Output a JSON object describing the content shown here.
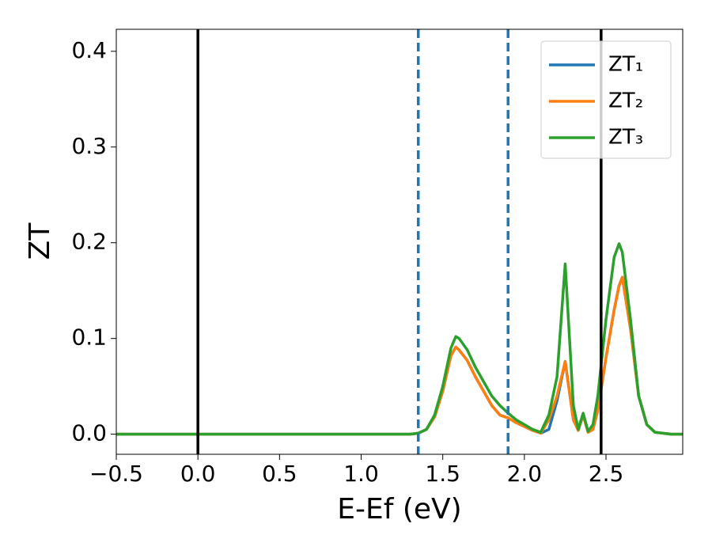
{
  "chart_data": {
    "type": "line",
    "xlabel": "E-Ef (eV)",
    "ylabel": "ZT",
    "x": [
      -0.5,
      0.0,
      0.5,
      1.0,
      1.3,
      1.35,
      1.4,
      1.45,
      1.5,
      1.55,
      1.58,
      1.6,
      1.65,
      1.7,
      1.75,
      1.8,
      1.85,
      1.9,
      1.95,
      2.0,
      2.05,
      2.1,
      2.15,
      2.2,
      2.25,
      2.3,
      2.33,
      2.36,
      2.39,
      2.42,
      2.45,
      2.5,
      2.55,
      2.58,
      2.6,
      2.65,
      2.7,
      2.75,
      2.8,
      2.9,
      2.97
    ],
    "series": [
      {
        "name": "ZT₁",
        "color": "#1f77b4",
        "values": [
          0,
          0,
          0,
          0,
          0,
          0.001,
          0.005,
          0.018,
          0.045,
          0.082,
          0.091,
          0.088,
          0.077,
          0.06,
          0.045,
          0.03,
          0.02,
          0.017,
          0.012,
          0.008,
          0.004,
          0.001,
          0.005,
          0.035,
          0.076,
          0.015,
          0.004,
          0.02,
          0.002,
          0.005,
          0.025,
          0.08,
          0.13,
          0.155,
          0.164,
          0.11,
          0.04,
          0.01,
          0.002,
          0,
          0
        ]
      },
      {
        "name": "ZT₂",
        "color": "#ff7f0e",
        "values": [
          0,
          0,
          0,
          0,
          0,
          0.001,
          0.005,
          0.018,
          0.045,
          0.082,
          0.091,
          0.088,
          0.077,
          0.06,
          0.045,
          0.03,
          0.02,
          0.017,
          0.012,
          0.008,
          0.004,
          0.001,
          0.015,
          0.04,
          0.076,
          0.015,
          0.004,
          0.02,
          0.002,
          0.005,
          0.025,
          0.08,
          0.13,
          0.155,
          0.164,
          0.11,
          0.04,
          0.01,
          0.002,
          0,
          0
        ]
      },
      {
        "name": "ZT₃",
        "color": "#2ca02c",
        "values": [
          0,
          0,
          0,
          0,
          0,
          0.001,
          0.005,
          0.02,
          0.05,
          0.09,
          0.102,
          0.1,
          0.088,
          0.07,
          0.055,
          0.04,
          0.03,
          0.022,
          0.015,
          0.01,
          0.005,
          0.002,
          0.02,
          0.06,
          0.178,
          0.03,
          0.005,
          0.022,
          0.003,
          0.01,
          0.04,
          0.12,
          0.185,
          0.199,
          0.19,
          0.12,
          0.04,
          0.01,
          0.002,
          0,
          0
        ]
      }
    ],
    "vlines": [
      {
        "x": 0.0,
        "color": "#000000",
        "dashed": false
      },
      {
        "x": 2.47,
        "color": "#000000",
        "dashed": false
      },
      {
        "x": 1.35,
        "color": "#1f77b4",
        "dashed": true
      },
      {
        "x": 1.9,
        "color": "#1f77b4",
        "dashed": true
      }
    ],
    "xlim": [
      -0.5,
      2.97
    ],
    "ylim": [
      -0.021,
      0.423
    ],
    "xticks": [
      {
        "value": -0.5,
        "label": "−0.5"
      },
      {
        "value": 0,
        "label": "0.0"
      },
      0.5,
      {
        "value": 1,
        "label": "1.0"
      },
      1.5,
      {
        "value": 2,
        "label": "2.0"
      },
      2.5
    ],
    "yticks": [
      {
        "value": 0,
        "label": "0.0"
      },
      0.1,
      0.2,
      0.3,
      0.4
    ],
    "legend": "upper right",
    "grid": false
  }
}
